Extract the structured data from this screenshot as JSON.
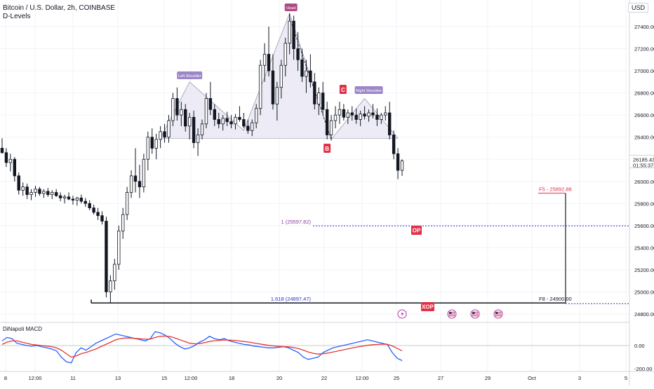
{
  "header": {
    "symbol": "Bitcoin / U.S. Dollar, 2h, COINBASE",
    "indicator": "D-Levels",
    "currency": "USD"
  },
  "colors": {
    "up": "#131722",
    "down": "#131722",
    "pattern_fill": "#e9e6f3",
    "pattern_line": "#9e9bb0",
    "label_purple": "#9c86c8",
    "label_head": "#b04a85",
    "red_tag": "#e03048",
    "blue_dotted": "#2b35c9",
    "macd_line": "#2962ff",
    "signal_line": "#e53935"
  },
  "chart_data": {
    "type": "candlestick",
    "title": "Bitcoin / U.S. Dollar, 2h, COINBASE",
    "y_axis_ticks": [
      "27400.00",
      "27200.00",
      "27000.00",
      "26800.00",
      "26600.00",
      "26400.00",
      "26200.00",
      "26000.00",
      "25800.00",
      "25600.00",
      "25400.00",
      "25200.00",
      "25000.00",
      "24800.00"
    ],
    "ylim": [
      24650,
      27620
    ],
    "x_axis_ticks": [
      "8",
      "12:00",
      "11",
      "13",
      "15",
      "12:00",
      "18",
      "20",
      "22",
      "12:00",
      "25",
      "27",
      "29",
      "Oct",
      "3",
      "5"
    ],
    "current_price": "26185.43",
    "countdown": "01:55:37",
    "candles": [
      [
        26300,
        26390,
        26250,
        26260
      ],
      [
        26260,
        26300,
        26130,
        26170
      ],
      [
        26170,
        26250,
        26090,
        26200
      ],
      [
        26200,
        26220,
        26000,
        26050
      ],
      [
        26050,
        26080,
        25880,
        25920
      ],
      [
        25920,
        25990,
        25870,
        25950
      ],
      [
        25950,
        25980,
        25840,
        25880
      ],
      [
        25880,
        25930,
        25830,
        25900
      ],
      [
        25900,
        25960,
        25860,
        25930
      ],
      [
        25930,
        25950,
        25870,
        25890
      ],
      [
        25890,
        25930,
        25850,
        25910
      ],
      [
        25910,
        25940,
        25860,
        25880
      ],
      [
        25880,
        25920,
        25840,
        25900
      ],
      [
        25900,
        25930,
        25860,
        25870
      ],
      [
        25870,
        25900,
        25820,
        25850
      ],
      [
        25850,
        25880,
        25800,
        25860
      ],
      [
        25860,
        25900,
        25830,
        25840
      ],
      [
        25840,
        25870,
        25790,
        25830
      ],
      [
        25830,
        25860,
        25780,
        25850
      ],
      [
        25850,
        25880,
        25800,
        25820
      ],
      [
        25820,
        25850,
        25770,
        25800
      ],
      [
        25800,
        25830,
        25740,
        25760
      ],
      [
        25760,
        25790,
        25700,
        25720
      ],
      [
        25720,
        25760,
        25650,
        25690
      ],
      [
        25690,
        25730,
        25610,
        25640
      ],
      [
        25640,
        25680,
        24950,
        25000
      ],
      [
        25000,
        25150,
        24900,
        25100
      ],
      [
        25100,
        25300,
        25020,
        25250
      ],
      [
        25250,
        25600,
        25200,
        25550
      ],
      [
        25550,
        25760,
        25480,
        25700
      ],
      [
        25700,
        25950,
        25650,
        25900
      ],
      [
        25900,
        26100,
        25850,
        26050
      ],
      [
        26050,
        26300,
        25900,
        26000
      ],
      [
        26000,
        26150,
        25850,
        25950
      ],
      [
        25950,
        26250,
        25900,
        26200
      ],
      [
        26200,
        26450,
        26100,
        26400
      ],
      [
        26400,
        26480,
        26250,
        26300
      ],
      [
        26300,
        26430,
        26200,
        26380
      ],
      [
        26380,
        26500,
        26300,
        26450
      ],
      [
        26450,
        26520,
        26350,
        26400
      ],
      [
        26400,
        26600,
        26350,
        26550
      ],
      [
        26550,
        26800,
        26500,
        26750
      ],
      [
        26750,
        26850,
        26550,
        26600
      ],
      [
        26600,
        26720,
        26500,
        26650
      ],
      [
        26650,
        26700,
        26450,
        26500
      ],
      [
        26500,
        26620,
        26380,
        26580
      ],
      [
        26580,
        26640,
        26300,
        26350
      ],
      [
        26350,
        26480,
        26230,
        26420
      ],
      [
        26420,
        26560,
        26380,
        26520
      ],
      [
        26520,
        26800,
        26480,
        26750
      ],
      [
        26750,
        26900,
        26600,
        26650
      ],
      [
        26650,
        26700,
        26500,
        26560
      ],
      [
        26560,
        26620,
        26480,
        26520
      ],
      [
        26520,
        26600,
        26460,
        26570
      ],
      [
        26570,
        26630,
        26500,
        26540
      ],
      [
        26540,
        26600,
        26480,
        26520
      ],
      [
        26520,
        26610,
        26470,
        26580
      ],
      [
        26580,
        26680,
        26540,
        26560
      ],
      [
        26560,
        26620,
        26480,
        26500
      ],
      [
        26500,
        26560,
        26430,
        26460
      ],
      [
        26460,
        26560,
        26410,
        26530
      ],
      [
        26530,
        26700,
        26480,
        26660
      ],
      [
        26660,
        27100,
        26600,
        27050
      ],
      [
        27050,
        27250,
        26900,
        27150
      ],
      [
        27150,
        27400,
        26950,
        27000
      ],
      [
        27000,
        27150,
        26650,
        26700
      ],
      [
        26700,
        26900,
        26550,
        26850
      ],
      [
        26850,
        27100,
        26750,
        27050
      ],
      [
        27050,
        27300,
        26950,
        27250
      ],
      [
        27250,
        27520,
        27150,
        27450
      ],
      [
        27450,
        27500,
        27100,
        27200
      ],
      [
        27200,
        27350,
        27000,
        27100
      ],
      [
        27100,
        27200,
        26900,
        26950
      ],
      [
        26950,
        27100,
        26800,
        27000
      ],
      [
        27000,
        27150,
        26850,
        26900
      ],
      [
        26900,
        26980,
        26650,
        26700
      ],
      [
        26700,
        26850,
        26600,
        26800
      ],
      [
        26800,
        26900,
        26600,
        26650
      ],
      [
        26650,
        26720,
        26380,
        26420
      ],
      [
        26420,
        26600,
        26370,
        26550
      ],
      [
        26550,
        26680,
        26480,
        26600
      ],
      [
        26600,
        26720,
        26520,
        26650
      ],
      [
        26650,
        26700,
        26550,
        26580
      ],
      [
        26580,
        26650,
        26520,
        26620
      ],
      [
        26620,
        26680,
        26550,
        26600
      ],
      [
        26600,
        26660,
        26520,
        26560
      ],
      [
        26560,
        26640,
        26500,
        26610
      ],
      [
        26610,
        26680,
        26560,
        26590
      ],
      [
        26590,
        26650,
        26540,
        26620
      ],
      [
        26620,
        26700,
        26570,
        26600
      ],
      [
        26600,
        26660,
        26500,
        26560
      ],
      [
        26560,
        26620,
        26520,
        26600
      ],
      [
        26600,
        26680,
        26550,
        26620
      ],
      [
        26620,
        26720,
        26380,
        26420
      ],
      [
        26420,
        26460,
        26200,
        26250
      ],
      [
        26250,
        26300,
        26020,
        26100
      ],
      [
        26100,
        26200,
        26050,
        26185
      ]
    ],
    "pattern": {
      "name": "Head and Shoulders",
      "labels": [
        "Left Shoulder",
        "Head",
        "Right Shoulder"
      ],
      "points": [
        "B",
        "C"
      ]
    },
    "levels": [
      {
        "label": "F5 - 25892.88",
        "value": 25892.88,
        "color": "#e03048"
      },
      {
        "label": "1 (25597.82)",
        "value": 25597.82,
        "color": "#8a3aa0"
      },
      {
        "label": "1.618 (24897.47)",
        "value": 24897.47,
        "color": "#2b35c9"
      },
      {
        "label": "F8 - 24900.00",
        "value": 24900.0,
        "color": "#131722"
      }
    ],
    "tags": [
      "OP",
      "XOP"
    ],
    "macd": {
      "title": "DiNapoli MACD",
      "y_ticks": [
        "0.00",
        "-200.00"
      ],
      "macd_line": [
        40,
        70,
        60,
        20,
        10,
        0,
        -5,
        0,
        -10,
        -20,
        -30,
        -45,
        -100,
        -140,
        -150,
        -60,
        -20,
        -40,
        -10,
        20,
        40,
        60,
        80,
        100,
        90,
        80,
        70,
        60,
        50,
        40,
        60,
        120,
        110,
        90,
        60,
        20,
        -10,
        -30,
        -20,
        0,
        30,
        50,
        80,
        60,
        50,
        60,
        40,
        30,
        20,
        10,
        5,
        -5,
        -10,
        -15,
        -20,
        -20,
        -15,
        -10,
        -20,
        -40,
        -60,
        -100,
        -120,
        -110,
        -100,
        -60,
        -40,
        -20,
        -10,
        0,
        10,
        20,
        30,
        40,
        50,
        40,
        30,
        20,
        10,
        -60,
        -110,
        -130
      ],
      "signal_line": [
        10,
        30,
        40,
        40,
        30,
        20,
        10,
        5,
        0,
        -5,
        -10,
        -20,
        -40,
        -70,
        -100,
        -90,
        -70,
        -60,
        -45,
        -30,
        -10,
        10,
        30,
        50,
        60,
        65,
        65,
        62,
        58,
        55,
        56,
        70,
        80,
        82,
        78,
        65,
        50,
        35,
        20,
        15,
        17,
        25,
        35,
        42,
        45,
        48,
        47,
        44,
        40,
        35,
        30,
        22,
        15,
        8,
        2,
        -3,
        -7,
        -9,
        -11,
        -17,
        -26,
        -40,
        -56,
        -67,
        -74,
        -71,
        -65,
        -56,
        -47,
        -38,
        -29,
        -20,
        -12,
        -5,
        2,
        7,
        10,
        12,
        11,
        -3,
        -25,
        -46
      ]
    }
  }
}
